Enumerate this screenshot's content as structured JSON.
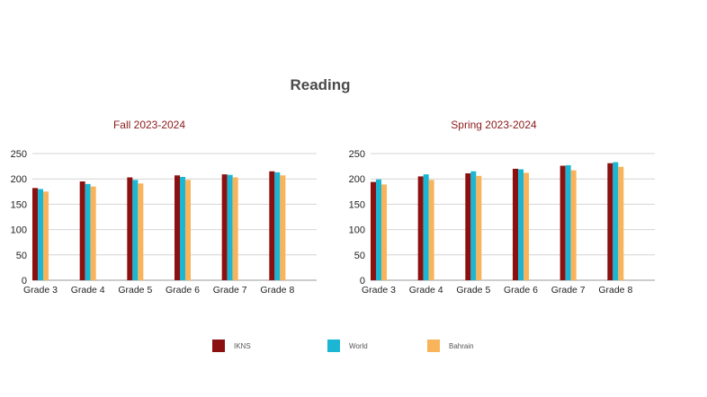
{
  "page_title": "Reading",
  "colors": {
    "IKNS": "#8b1111",
    "World": "#1ab6d3",
    "Bahrain": "#f9b35b"
  },
  "legend": [
    {
      "name": "IKNS",
      "color": "#8b1111"
    },
    {
      "name": "World",
      "color": "#1ab6d3"
    },
    {
      "name": "Bahrain",
      "color": "#f9b35b"
    }
  ],
  "chart_data": [
    {
      "type": "bar",
      "title": "Fall  2023-2024",
      "categories": [
        "Grade 3",
        "Grade 4",
        "Grade 5",
        "Grade 6",
        "Grade 7",
        "Grade 8"
      ],
      "ylim": [
        0,
        250
      ],
      "yticks": [
        0,
        50,
        100,
        150,
        200,
        250
      ],
      "grid": true,
      "series": [
        {
          "name": "IKNS",
          "values": [
            182,
            195,
            203,
            207,
            209,
            215
          ]
        },
        {
          "name": "World",
          "values": [
            180,
            190,
            198,
            204,
            208,
            213
          ]
        },
        {
          "name": "Bahrain",
          "values": [
            175,
            185,
            191,
            198,
            203,
            207
          ]
        }
      ]
    },
    {
      "type": "bar",
      "title": "Spring  2023-2024",
      "categories": [
        "Grade 3",
        "Grade 4",
        "Grade 5",
        "Grade 6",
        "Grade 7",
        "Grade 8"
      ],
      "ylim": [
        0,
        250
      ],
      "yticks": [
        0,
        50,
        100,
        150,
        200,
        250
      ],
      "grid": true,
      "series": [
        {
          "name": "IKNS",
          "values": [
            194,
            205,
            211,
            220,
            226,
            231
          ]
        },
        {
          "name": "World",
          "values": [
            199,
            209,
            215,
            219,
            227,
            233
          ]
        },
        {
          "name": "Bahrain",
          "values": [
            189,
            198,
            206,
            212,
            217,
            224
          ]
        }
      ]
    }
  ]
}
